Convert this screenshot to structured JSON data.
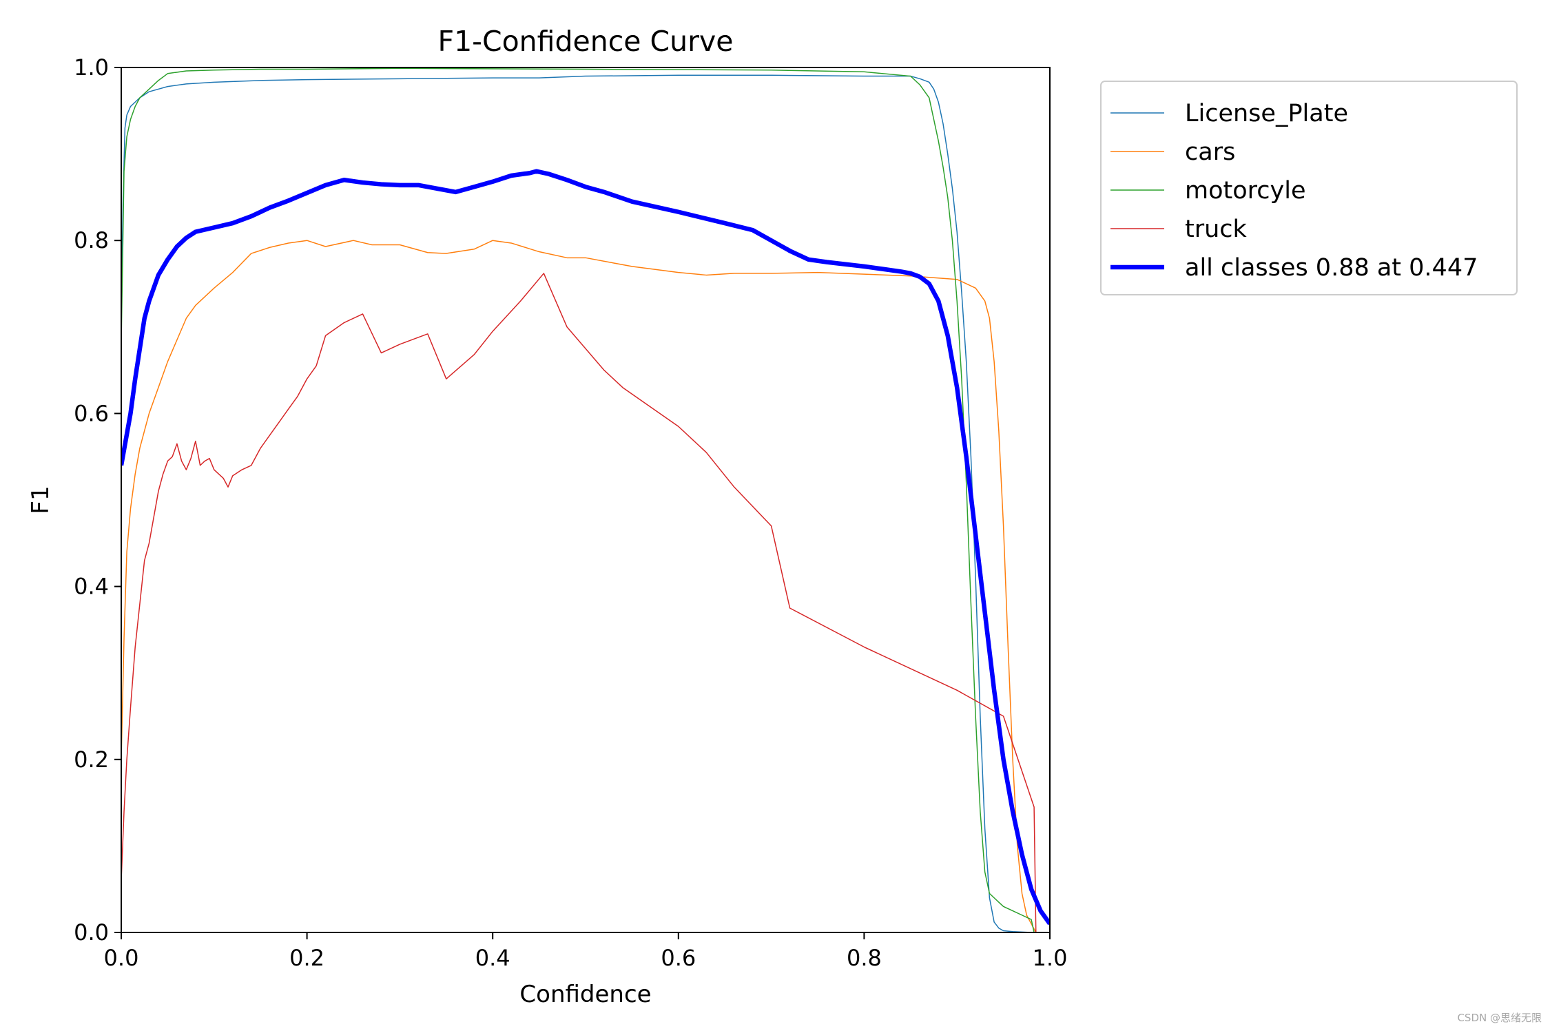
{
  "watermark": "CSDN @思绪无限",
  "chart_data": {
    "type": "line",
    "title": "F1-Confidence Curve",
    "xlabel": "Confidence",
    "ylabel": "F1",
    "xlim": [
      0.0,
      1.0
    ],
    "ylim": [
      0.0,
      1.0
    ],
    "xticks": [
      "0.0",
      "0.2",
      "0.4",
      "0.6",
      "0.8",
      "1.0"
    ],
    "yticks": [
      "0.0",
      "0.2",
      "0.4",
      "0.6",
      "0.8",
      "1.0"
    ],
    "grid": false,
    "legend_position": "outside-top-right",
    "series": [
      {
        "name": "License_Plate",
        "color": "#1f77b4",
        "width": 1.5,
        "x": [
          0.0,
          0.002,
          0.004,
          0.006,
          0.01,
          0.015,
          0.02,
          0.03,
          0.05,
          0.07,
          0.1,
          0.15,
          0.2,
          0.3,
          0.4,
          0.45,
          0.5,
          0.6,
          0.7,
          0.8,
          0.85,
          0.86,
          0.87,
          0.875,
          0.88,
          0.885,
          0.89,
          0.895,
          0.9,
          0.905,
          0.91,
          0.915,
          0.92,
          0.925,
          0.93,
          0.935,
          0.94,
          0.945,
          0.95,
          0.96,
          0.98
        ],
        "y": [
          0.72,
          0.85,
          0.93,
          0.945,
          0.955,
          0.96,
          0.965,
          0.972,
          0.978,
          0.981,
          0.983,
          0.985,
          0.986,
          0.987,
          0.988,
          0.988,
          0.99,
          0.991,
          0.991,
          0.99,
          0.99,
          0.987,
          0.983,
          0.975,
          0.96,
          0.935,
          0.9,
          0.86,
          0.81,
          0.74,
          0.66,
          0.55,
          0.41,
          0.25,
          0.12,
          0.04,
          0.012,
          0.005,
          0.002,
          0.001,
          0.0
        ]
      },
      {
        "name": "cars",
        "color": "#ff7f0e",
        "width": 1.5,
        "x": [
          0.0,
          0.003,
          0.006,
          0.01,
          0.015,
          0.02,
          0.03,
          0.04,
          0.05,
          0.06,
          0.07,
          0.08,
          0.1,
          0.12,
          0.14,
          0.16,
          0.18,
          0.2,
          0.22,
          0.25,
          0.27,
          0.3,
          0.33,
          0.35,
          0.38,
          0.4,
          0.42,
          0.45,
          0.48,
          0.5,
          0.55,
          0.6,
          0.63,
          0.66,
          0.7,
          0.75,
          0.8,
          0.85,
          0.9,
          0.92,
          0.93,
          0.935,
          0.94,
          0.945,
          0.95,
          0.955,
          0.96,
          0.965,
          0.97,
          0.975,
          0.98,
          0.985
        ],
        "y": [
          0.2,
          0.34,
          0.44,
          0.49,
          0.53,
          0.56,
          0.6,
          0.63,
          0.66,
          0.685,
          0.71,
          0.725,
          0.745,
          0.763,
          0.785,
          0.792,
          0.797,
          0.8,
          0.793,
          0.8,
          0.795,
          0.795,
          0.786,
          0.785,
          0.79,
          0.8,
          0.797,
          0.787,
          0.78,
          0.78,
          0.77,
          0.763,
          0.76,
          0.762,
          0.762,
          0.763,
          0.761,
          0.759,
          0.755,
          0.745,
          0.73,
          0.71,
          0.66,
          0.58,
          0.47,
          0.33,
          0.2,
          0.1,
          0.045,
          0.02,
          0.01,
          0.0
        ]
      },
      {
        "name": "motorcyle",
        "color": "#2ca02c",
        "width": 1.5,
        "x": [
          0.0,
          0.003,
          0.006,
          0.01,
          0.015,
          0.02,
          0.03,
          0.04,
          0.05,
          0.07,
          0.1,
          0.15,
          0.2,
          0.3,
          0.5,
          0.7,
          0.8,
          0.85,
          0.86,
          0.87,
          0.875,
          0.88,
          0.885,
          0.89,
          0.895,
          0.9,
          0.905,
          0.91,
          0.915,
          0.92,
          0.925,
          0.93,
          0.935,
          0.94,
          0.945,
          0.95,
          0.96,
          0.97,
          0.98,
          0.983
        ],
        "y": [
          0.68,
          0.88,
          0.92,
          0.94,
          0.955,
          0.965,
          0.975,
          0.985,
          0.993,
          0.996,
          0.997,
          0.998,
          0.998,
          0.999,
          0.998,
          0.997,
          0.995,
          0.99,
          0.98,
          0.965,
          0.94,
          0.915,
          0.885,
          0.85,
          0.8,
          0.73,
          0.64,
          0.52,
          0.38,
          0.25,
          0.14,
          0.07,
          0.045,
          0.04,
          0.035,
          0.03,
          0.025,
          0.02,
          0.015,
          0.0
        ]
      },
      {
        "name": "truck",
        "color": "#d62728",
        "width": 1.5,
        "x": [
          0.0,
          0.003,
          0.006,
          0.01,
          0.015,
          0.02,
          0.025,
          0.03,
          0.035,
          0.04,
          0.045,
          0.05,
          0.055,
          0.06,
          0.065,
          0.07,
          0.075,
          0.08,
          0.085,
          0.09,
          0.095,
          0.1,
          0.105,
          0.11,
          0.115,
          0.12,
          0.13,
          0.14,
          0.15,
          0.16,
          0.17,
          0.18,
          0.19,
          0.2,
          0.21,
          0.22,
          0.24,
          0.26,
          0.28,
          0.3,
          0.33,
          0.35,
          0.38,
          0.4,
          0.43,
          0.455,
          0.48,
          0.52,
          0.54,
          0.6,
          0.63,
          0.66,
          0.7,
          0.72,
          0.8,
          0.9,
          0.95,
          0.983,
          0.985
        ],
        "y": [
          0.06,
          0.14,
          0.2,
          0.26,
          0.33,
          0.38,
          0.43,
          0.45,
          0.48,
          0.51,
          0.53,
          0.545,
          0.55,
          0.565,
          0.545,
          0.535,
          0.548,
          0.568,
          0.54,
          0.545,
          0.548,
          0.535,
          0.53,
          0.525,
          0.515,
          0.528,
          0.535,
          0.54,
          0.56,
          0.575,
          0.59,
          0.605,
          0.62,
          0.64,
          0.655,
          0.69,
          0.705,
          0.715,
          0.67,
          0.68,
          0.692,
          0.64,
          0.668,
          0.695,
          0.73,
          0.762,
          0.7,
          0.65,
          0.63,
          0.585,
          0.555,
          0.515,
          0.47,
          0.375,
          0.33,
          0.28,
          0.25,
          0.145,
          0.0
        ]
      },
      {
        "name": "all classes 0.88 at 0.447",
        "color": "#0000ff",
        "width": 6.5,
        "x": [
          0.0,
          0.005,
          0.01,
          0.015,
          0.02,
          0.025,
          0.03,
          0.035,
          0.04,
          0.05,
          0.06,
          0.07,
          0.08,
          0.1,
          0.12,
          0.14,
          0.16,
          0.18,
          0.2,
          0.22,
          0.24,
          0.26,
          0.28,
          0.3,
          0.32,
          0.34,
          0.36,
          0.38,
          0.4,
          0.42,
          0.44,
          0.447,
          0.46,
          0.48,
          0.5,
          0.52,
          0.55,
          0.6,
          0.65,
          0.68,
          0.7,
          0.72,
          0.74,
          0.76,
          0.8,
          0.82,
          0.84,
          0.85,
          0.86,
          0.87,
          0.88,
          0.89,
          0.9,
          0.91,
          0.92,
          0.93,
          0.94,
          0.95,
          0.96,
          0.97,
          0.98,
          0.99,
          1.0
        ],
        "y": [
          0.54,
          0.57,
          0.6,
          0.64,
          0.675,
          0.71,
          0.73,
          0.745,
          0.76,
          0.778,
          0.793,
          0.803,
          0.81,
          0.815,
          0.82,
          0.828,
          0.838,
          0.846,
          0.855,
          0.864,
          0.87,
          0.867,
          0.865,
          0.864,
          0.864,
          0.86,
          0.856,
          0.862,
          0.868,
          0.875,
          0.878,
          0.88,
          0.877,
          0.87,
          0.862,
          0.856,
          0.845,
          0.833,
          0.82,
          0.812,
          0.8,
          0.788,
          0.778,
          0.775,
          0.77,
          0.767,
          0.764,
          0.762,
          0.758,
          0.75,
          0.73,
          0.69,
          0.63,
          0.55,
          0.46,
          0.37,
          0.28,
          0.2,
          0.14,
          0.09,
          0.05,
          0.025,
          0.01
        ]
      }
    ]
  }
}
